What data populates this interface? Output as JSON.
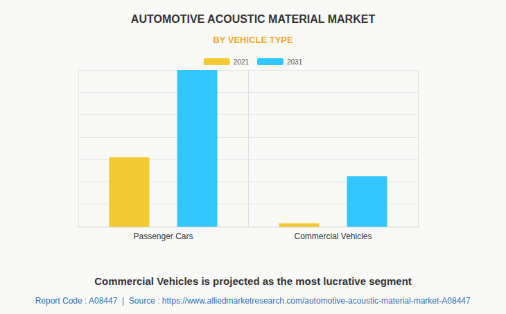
{
  "chart_data": {
    "type": "bar",
    "title": "AUTOMOTIVE ACOUSTIC MATERIAL MARKET",
    "subtitle": "BY VEHICLE TYPE",
    "categories": [
      "Passenger Cars",
      "Commercial Vehicles"
    ],
    "series": [
      {
        "name": "2021",
        "color": "#f5c932",
        "values": [
          3.1,
          0.15
        ]
      },
      {
        "name": "2031",
        "color": "#33c6fe",
        "values": [
          7.0,
          2.25
        ]
      }
    ],
    "ylim": [
      0,
      7
    ],
    "yticks": [
      0,
      1,
      2,
      3,
      4,
      5,
      6,
      7
    ],
    "grid": true,
    "legend": "top",
    "tick_labels": "x",
    "annotations": [
      "Commercial Vehicles is projected as the most lucrative segment",
      "Report Code : A08447  |  Source : https://www.alliedmarketresearch.com/automotive-acoustic-material-market-A08447"
    ]
  }
}
